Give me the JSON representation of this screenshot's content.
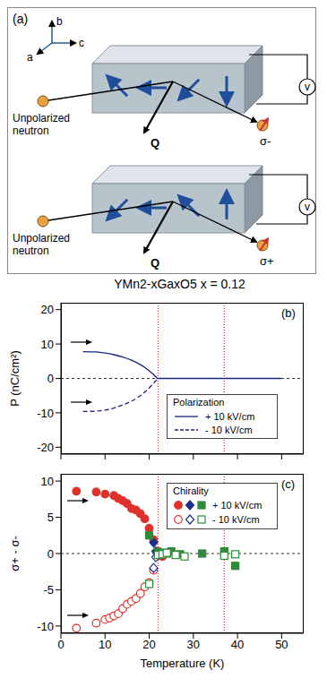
{
  "panel_a": {
    "label": "(a)",
    "axes": {
      "a": "a",
      "b": "b",
      "c": "c"
    },
    "rows": [
      {
        "incoming": "Unpolarized neutron",
        "q": "Q",
        "meter": "v",
        "outgoing": "σ-"
      },
      {
        "incoming": "Unpolarized neutron",
        "q": "Q",
        "meter": "v",
        "outgoing": "σ+"
      }
    ]
  },
  "title": "YMn2-xGaxO5 x = 0.12",
  "chart_data": [
    {
      "type": "line",
      "label": "(b)",
      "ylabel": "P (nC/cm²)",
      "xlim": [
        0,
        55
      ],
      "ylim": [
        -22,
        22
      ],
      "xticks": [
        0,
        10,
        20,
        30,
        40,
        50
      ],
      "yticks": [
        -20,
        -10,
        0,
        10,
        20
      ],
      "tick_labels": "y",
      "legend": "lower right",
      "legend_title": "Polarization",
      "vertical_lines": [
        22,
        37
      ],
      "series": [
        {
          "name": "+ 10 kV/cm",
          "color": "#1a237e",
          "line_style": "solid",
          "x": [
            5,
            8,
            10,
            12,
            14,
            16,
            18,
            19,
            20,
            21,
            22,
            25,
            30,
            35,
            40,
            45,
            50
          ],
          "values": [
            7.8,
            7.7,
            7.4,
            6.9,
            6.2,
            5.3,
            4.0,
            3.2,
            2.2,
            1.1,
            0,
            0,
            0,
            0,
            0,
            0,
            0
          ]
        },
        {
          "name": "- 10 kV/cm",
          "color": "#1a237e",
          "line_style": "dashed",
          "x": [
            5,
            8,
            10,
            12,
            14,
            16,
            18,
            19,
            20,
            21,
            22
          ],
          "values": [
            -9.6,
            -9.5,
            -9.2,
            -8.6,
            -7.7,
            -6.6,
            -5.0,
            -4.0,
            -2.8,
            -1.4,
            0
          ]
        }
      ]
    },
    {
      "type": "scatter",
      "label": "(c)",
      "xlabel": "Temperature (K)",
      "ylabel": "σ+ - σ-",
      "xlim": [
        0,
        55
      ],
      "ylim": [
        -11,
        11
      ],
      "xticks": [
        0,
        10,
        20,
        30,
        40,
        50
      ],
      "yticks": [
        -10,
        -5,
        0,
        5,
        10
      ],
      "legend": "upper right",
      "legend_title": "Chirality",
      "vertical_lines": [
        22,
        37
      ],
      "series": [
        {
          "name": "+ 10 kV/cm",
          "color": "#e0302a",
          "marker": "circle",
          "x": [
            3.5,
            8,
            10,
            12,
            13,
            14,
            15,
            16,
            17,
            18,
            19,
            20,
            21,
            22,
            23
          ],
          "values": [
            8.6,
            8.5,
            8.2,
            8.0,
            7.6,
            7.3,
            6.9,
            6.2,
            6.0,
            5.5,
            4.8,
            3.5,
            1.9,
            0.3,
            -0.4
          ]
        },
        {
          "name": "+ 10 kV/cm",
          "color": "#1f2f8f",
          "marker": "diamond",
          "x": [
            21,
            21.5
          ],
          "values": [
            1.5,
            0.3
          ]
        },
        {
          "name": "+ 10 kV/cm",
          "color": "#2e8b3a",
          "marker": "square",
          "x": [
            20,
            22,
            23,
            24,
            25,
            27,
            32,
            37,
            39.5
          ],
          "values": [
            2.5,
            0.2,
            0.1,
            0,
            0.3,
            -0.1,
            0,
            0.3,
            -1.7
          ]
        },
        {
          "name": "- 10 kV/cm",
          "color": "#e0302a",
          "marker": "open_circle",
          "x": [
            3.5,
            8,
            10,
            11,
            12,
            13,
            14,
            15,
            16,
            17,
            18,
            19,
            20,
            21,
            22
          ],
          "values": [
            -10.3,
            -9.6,
            -9.1,
            -8.9,
            -8.6,
            -8.3,
            -7.6,
            -7.0,
            -6.6,
            -6.2,
            -5.5,
            -4.6,
            -4.0,
            -2.3,
            -0.3
          ]
        },
        {
          "name": "- 10 kV/cm",
          "color": "#1f2f8f",
          "marker": "open_diamond",
          "x": [
            21,
            21.5
          ],
          "values": [
            -2.0,
            -0.5
          ]
        },
        {
          "name": "- 10 kV/cm",
          "color": "#2e8b3a",
          "marker": "open_square",
          "x": [
            20,
            22,
            23,
            24,
            26,
            28,
            37,
            39.5
          ],
          "values": [
            -4.2,
            -0.2,
            -0.1,
            0.1,
            -0.2,
            -0.4,
            -0.3,
            -0.1
          ]
        }
      ]
    }
  ]
}
